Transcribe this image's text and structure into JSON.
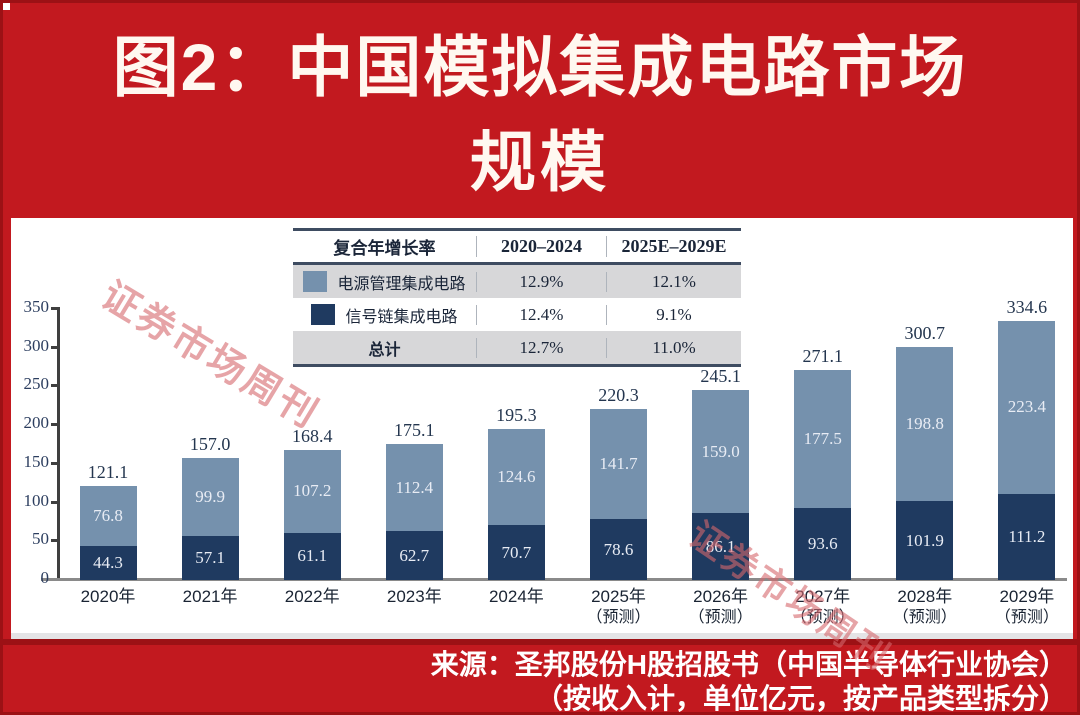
{
  "header": {
    "title_line1": "图2：中国模拟集成电路市场",
    "title_line2": "规模"
  },
  "watermark": {
    "text": "证券市场周刊"
  },
  "legend_table": {
    "header": {
      "col1": "复合年增长率",
      "col2": "2020–2024",
      "col3": "2025E–2029E"
    },
    "rows": [
      {
        "label": "电源管理集成电路",
        "cagr_2020_2024": "12.9%",
        "cagr_2025_2029": "12.1%",
        "swatch": "#7591AD"
      },
      {
        "label": "信号链集成电路",
        "cagr_2020_2024": "12.4%",
        "cagr_2025_2029": "9.1%",
        "swatch": "#1F3A60"
      },
      {
        "label": "总计",
        "cagr_2020_2024": "12.7%",
        "cagr_2025_2029": "11.0%"
      }
    ]
  },
  "chart_data": {
    "type": "bar",
    "stacked": true,
    "title": "中国模拟集成电路市场规模",
    "unit": "亿元",
    "ylim": [
      0,
      350
    ],
    "yticks": [
      0,
      50,
      100,
      150,
      200,
      250,
      300,
      350
    ],
    "grid": false,
    "legend_position": "top-table",
    "categories": [
      {
        "label": "2020年",
        "note": ""
      },
      {
        "label": "2021年",
        "note": ""
      },
      {
        "label": "2022年",
        "note": ""
      },
      {
        "label": "2023年",
        "note": ""
      },
      {
        "label": "2024年",
        "note": ""
      },
      {
        "label": "2025年",
        "note": "（预测）"
      },
      {
        "label": "2026年",
        "note": "（预测）"
      },
      {
        "label": "2027年",
        "note": "（预测）"
      },
      {
        "label": "2028年",
        "note": "（预测）"
      },
      {
        "label": "2029年",
        "note": "（预测）"
      }
    ],
    "series": [
      {
        "name": "信号链集成电路",
        "color": "#1F3A60",
        "values": [
          44.3,
          57.1,
          61.1,
          62.7,
          70.7,
          78.6,
          86.1,
          93.6,
          101.9,
          111.2
        ]
      },
      {
        "name": "电源管理集成电路",
        "color": "#7591AD",
        "values": [
          76.8,
          99.9,
          107.2,
          112.4,
          124.6,
          141.7,
          159.0,
          177.5,
          198.8,
          223.4
        ]
      }
    ],
    "totals": [
      121.1,
      157.0,
      168.4,
      175.1,
      195.3,
      220.3,
      245.1,
      271.1,
      300.7,
      334.6
    ]
  },
  "footer": {
    "source_line1": "来源：圣邦股份H股招股书（中国半导体行业协会）",
    "source_line2": "（按收入计，单位亿元，按产品类型拆分）"
  }
}
